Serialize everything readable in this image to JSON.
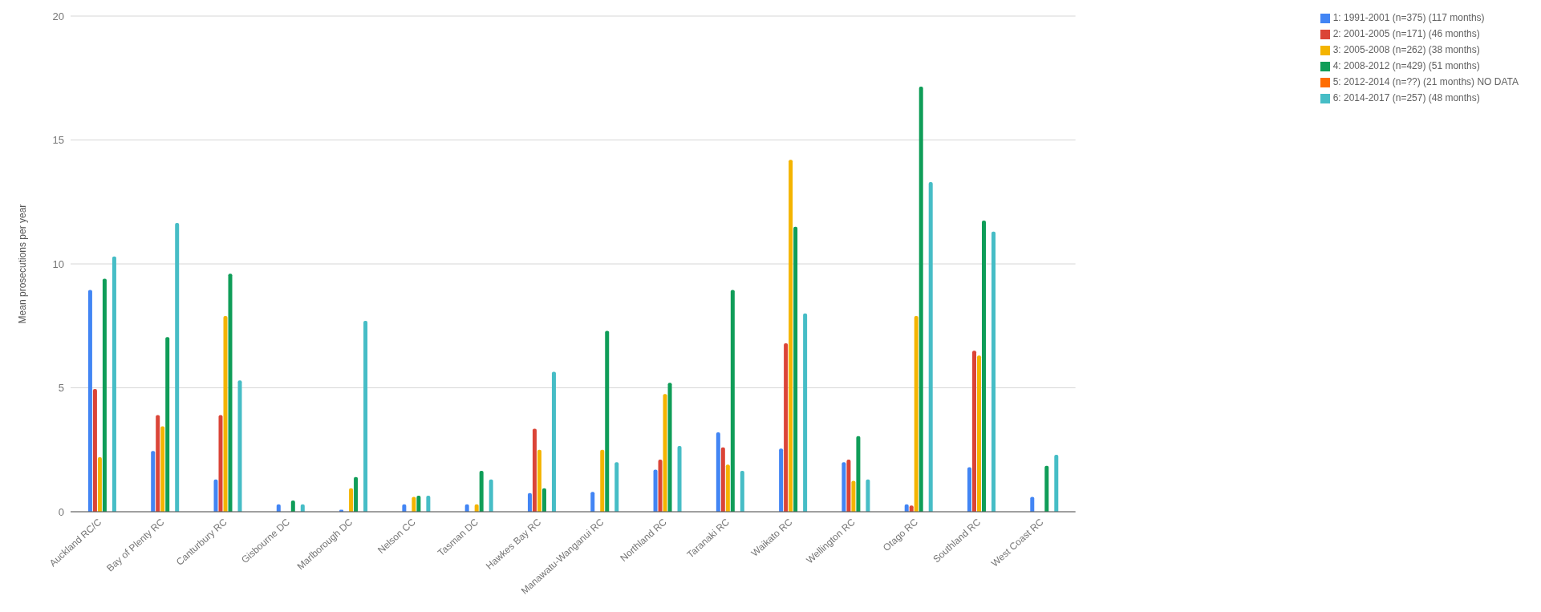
{
  "chart_data": {
    "type": "bar",
    "ylabel": "Mean prosecutions per year",
    "categories": [
      "Auckland RC/C",
      "Bay of Plenty RC",
      "Canturbury RC",
      "Gisbourne DC",
      "Marlborough DC",
      "Nelson CC",
      "Tasman DC",
      "Hawkes Bay RC",
      "Manawatu-Wanganui RC",
      "Northland RC",
      "Taranaki RC",
      "Waikato RC",
      "Wellington RC",
      "Otago RC",
      "Southland RC",
      "West Coast RC"
    ],
    "series": [
      {
        "name": "1: 1991-2001 (n=375) (117 months)",
        "color": "#4285f4",
        "values": [
          8.95,
          2.45,
          1.3,
          0.3,
          0.08,
          0.3,
          0.3,
          0.75,
          0.8,
          1.7,
          3.2,
          2.55,
          2.0,
          0.3,
          1.8,
          0.6
        ]
      },
      {
        "name": "2:  2001-2005 (n=171) (46 months)",
        "color": "#db4437",
        "values": [
          4.95,
          3.9,
          3.9,
          null,
          null,
          null,
          null,
          3.35,
          null,
          2.1,
          2.6,
          6.8,
          2.1,
          0.25,
          6.5,
          null
        ]
      },
      {
        "name": "3:  2005-2008 (n=262) (38 months)",
        "color": "#f4b400",
        "values": [
          2.2,
          3.45,
          7.9,
          null,
          0.95,
          0.6,
          0.3,
          2.5,
          2.5,
          4.75,
          1.9,
          14.2,
          1.25,
          7.9,
          6.3,
          null
        ]
      },
      {
        "name": "4: 2008-2012 (n=429) (51 months)",
        "color": "#0f9d58",
        "values": [
          9.4,
          7.05,
          9.6,
          0.45,
          1.4,
          0.65,
          1.65,
          0.95,
          7.3,
          5.2,
          8.95,
          11.5,
          3.05,
          17.15,
          11.75,
          1.85
        ]
      },
      {
        "name": "5: 2012-2014 (n=??) (21 months) NO DATA",
        "color": "#ff6d00",
        "values": [
          null,
          null,
          null,
          null,
          null,
          null,
          null,
          null,
          null,
          null,
          null,
          null,
          null,
          null,
          null,
          null
        ]
      },
      {
        "name": "6: 2014-2017 (n=257) (48 months)",
        "color": "#46bdc6",
        "values": [
          10.3,
          11.65,
          5.3,
          0.3,
          7.7,
          0.65,
          1.3,
          5.65,
          2.0,
          2.65,
          1.65,
          8.0,
          1.3,
          13.3,
          11.3,
          2.3
        ]
      }
    ],
    "ylim": [
      0,
      20
    ],
    "yticks": [
      0,
      5,
      10,
      15,
      20
    ],
    "grid": "y",
    "legend": "top right"
  }
}
